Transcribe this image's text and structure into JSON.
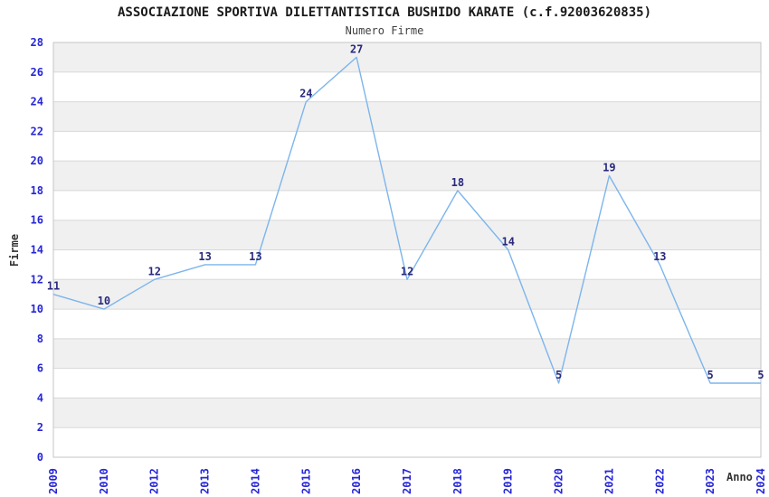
{
  "chart_data": {
    "type": "line",
    "title": "ASSOCIAZIONE SPORTIVA DILETTANTISTICA BUSHIDO KARATE (c.f.92003620835)",
    "subtitle": "Numero Firme",
    "xlabel": "Anno",
    "ylabel": "Firme",
    "categories": [
      "2009",
      "2010",
      "2012",
      "2013",
      "2014",
      "2015",
      "2016",
      "2017",
      "2018",
      "2019",
      "2020",
      "2021",
      "2022",
      "2023",
      "2024"
    ],
    "values": [
      11,
      10,
      12,
      13,
      13,
      24,
      27,
      12,
      18,
      14,
      5,
      19,
      13,
      5,
      5
    ],
    "ylim": [
      0,
      28
    ],
    "ytick_step": 2,
    "grid": true,
    "legend_visible": false,
    "data_labels_visible": true,
    "colors": {
      "line": "#7cb5ec",
      "tick_label": "#2626d9",
      "data_label": "#29297d",
      "band": "#f0f0f0",
      "gridline": "#d8d8d8",
      "plot_border": "#c6c6c6",
      "title": "#1a1a1a",
      "subtitle": "#404040",
      "axis_label": "#333333",
      "background": "#ffffff"
    }
  }
}
